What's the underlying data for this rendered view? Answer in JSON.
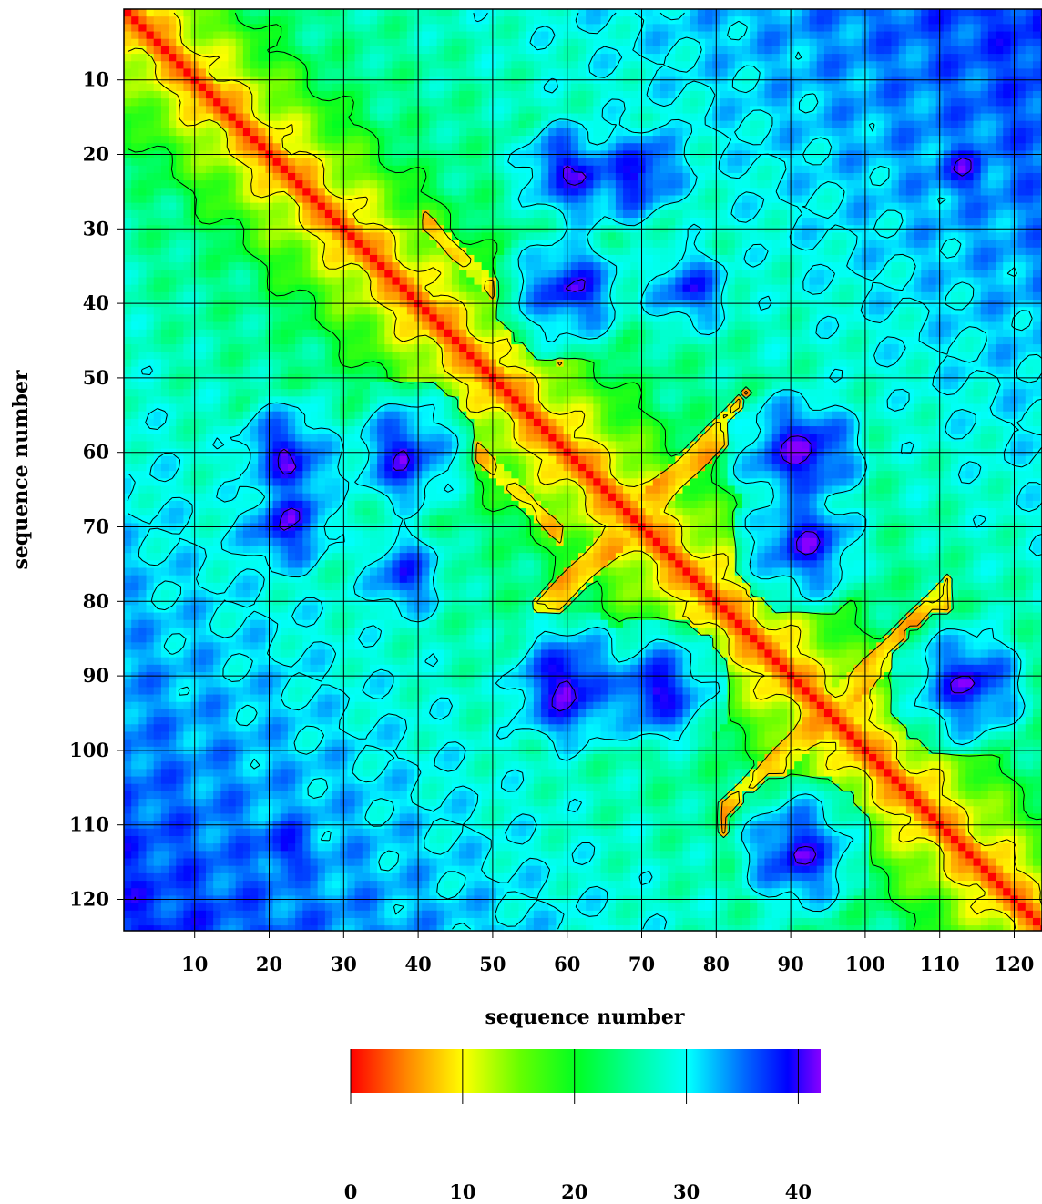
{
  "chart_data": {
    "type": "heatmap",
    "title": "",
    "xlabel": "sequence number",
    "ylabel": "sequence number",
    "n_residues": 124,
    "x_ticks": [
      10,
      20,
      30,
      40,
      50,
      60,
      70,
      80,
      90,
      100,
      110,
      120
    ],
    "y_ticks": [
      10,
      20,
      30,
      40,
      50,
      60,
      70,
      80,
      90,
      100,
      110,
      120
    ],
    "grid": true,
    "contours": true,
    "value_range": [
      0,
      42
    ],
    "colorbar": {
      "ticks": [
        0,
        10,
        20,
        30,
        40
      ],
      "colors": [
        "#ff0000",
        "#ff9900",
        "#ffff00",
        "#66ff00",
        "#00ff33",
        "#00ffff",
        "#0066ff",
        "#0000ff",
        "#8800ff"
      ]
    },
    "structure": {
      "diagonal": "distance 0 along main diagonal (red)",
      "low_distance_bands": [
        [
          60,
          95
        ],
        [
          68,
          80
        ],
        [
          82,
          100
        ],
        [
          95,
          108
        ]
      ],
      "high_distance_regions": [
        {
          "x": 60,
          "y": 22,
          "value": 40
        },
        {
          "x": 70,
          "y": 22,
          "value": 40
        },
        {
          "x": 60,
          "y": 38,
          "value": 40
        },
        {
          "x": 77,
          "y": 38,
          "value": 38
        },
        {
          "x": 23,
          "y": 62,
          "value": 40
        },
        {
          "x": 23,
          "y": 69,
          "value": 40
        },
        {
          "x": 38,
          "y": 61,
          "value": 40
        },
        {
          "x": 38,
          "y": 76,
          "value": 38
        },
        {
          "x": 92,
          "y": 60,
          "value": 42
        },
        {
          "x": 92,
          "y": 72,
          "value": 41
        },
        {
          "x": 60,
          "y": 91,
          "value": 42
        },
        {
          "x": 72,
          "y": 92,
          "value": 41
        },
        {
          "x": 113,
          "y": 91,
          "value": 40
        },
        {
          "x": 113,
          "y": 22,
          "value": 40
        },
        {
          "x": 22,
          "y": 113,
          "value": 40
        },
        {
          "x": 91,
          "y": 114,
          "value": 41
        }
      ]
    }
  }
}
